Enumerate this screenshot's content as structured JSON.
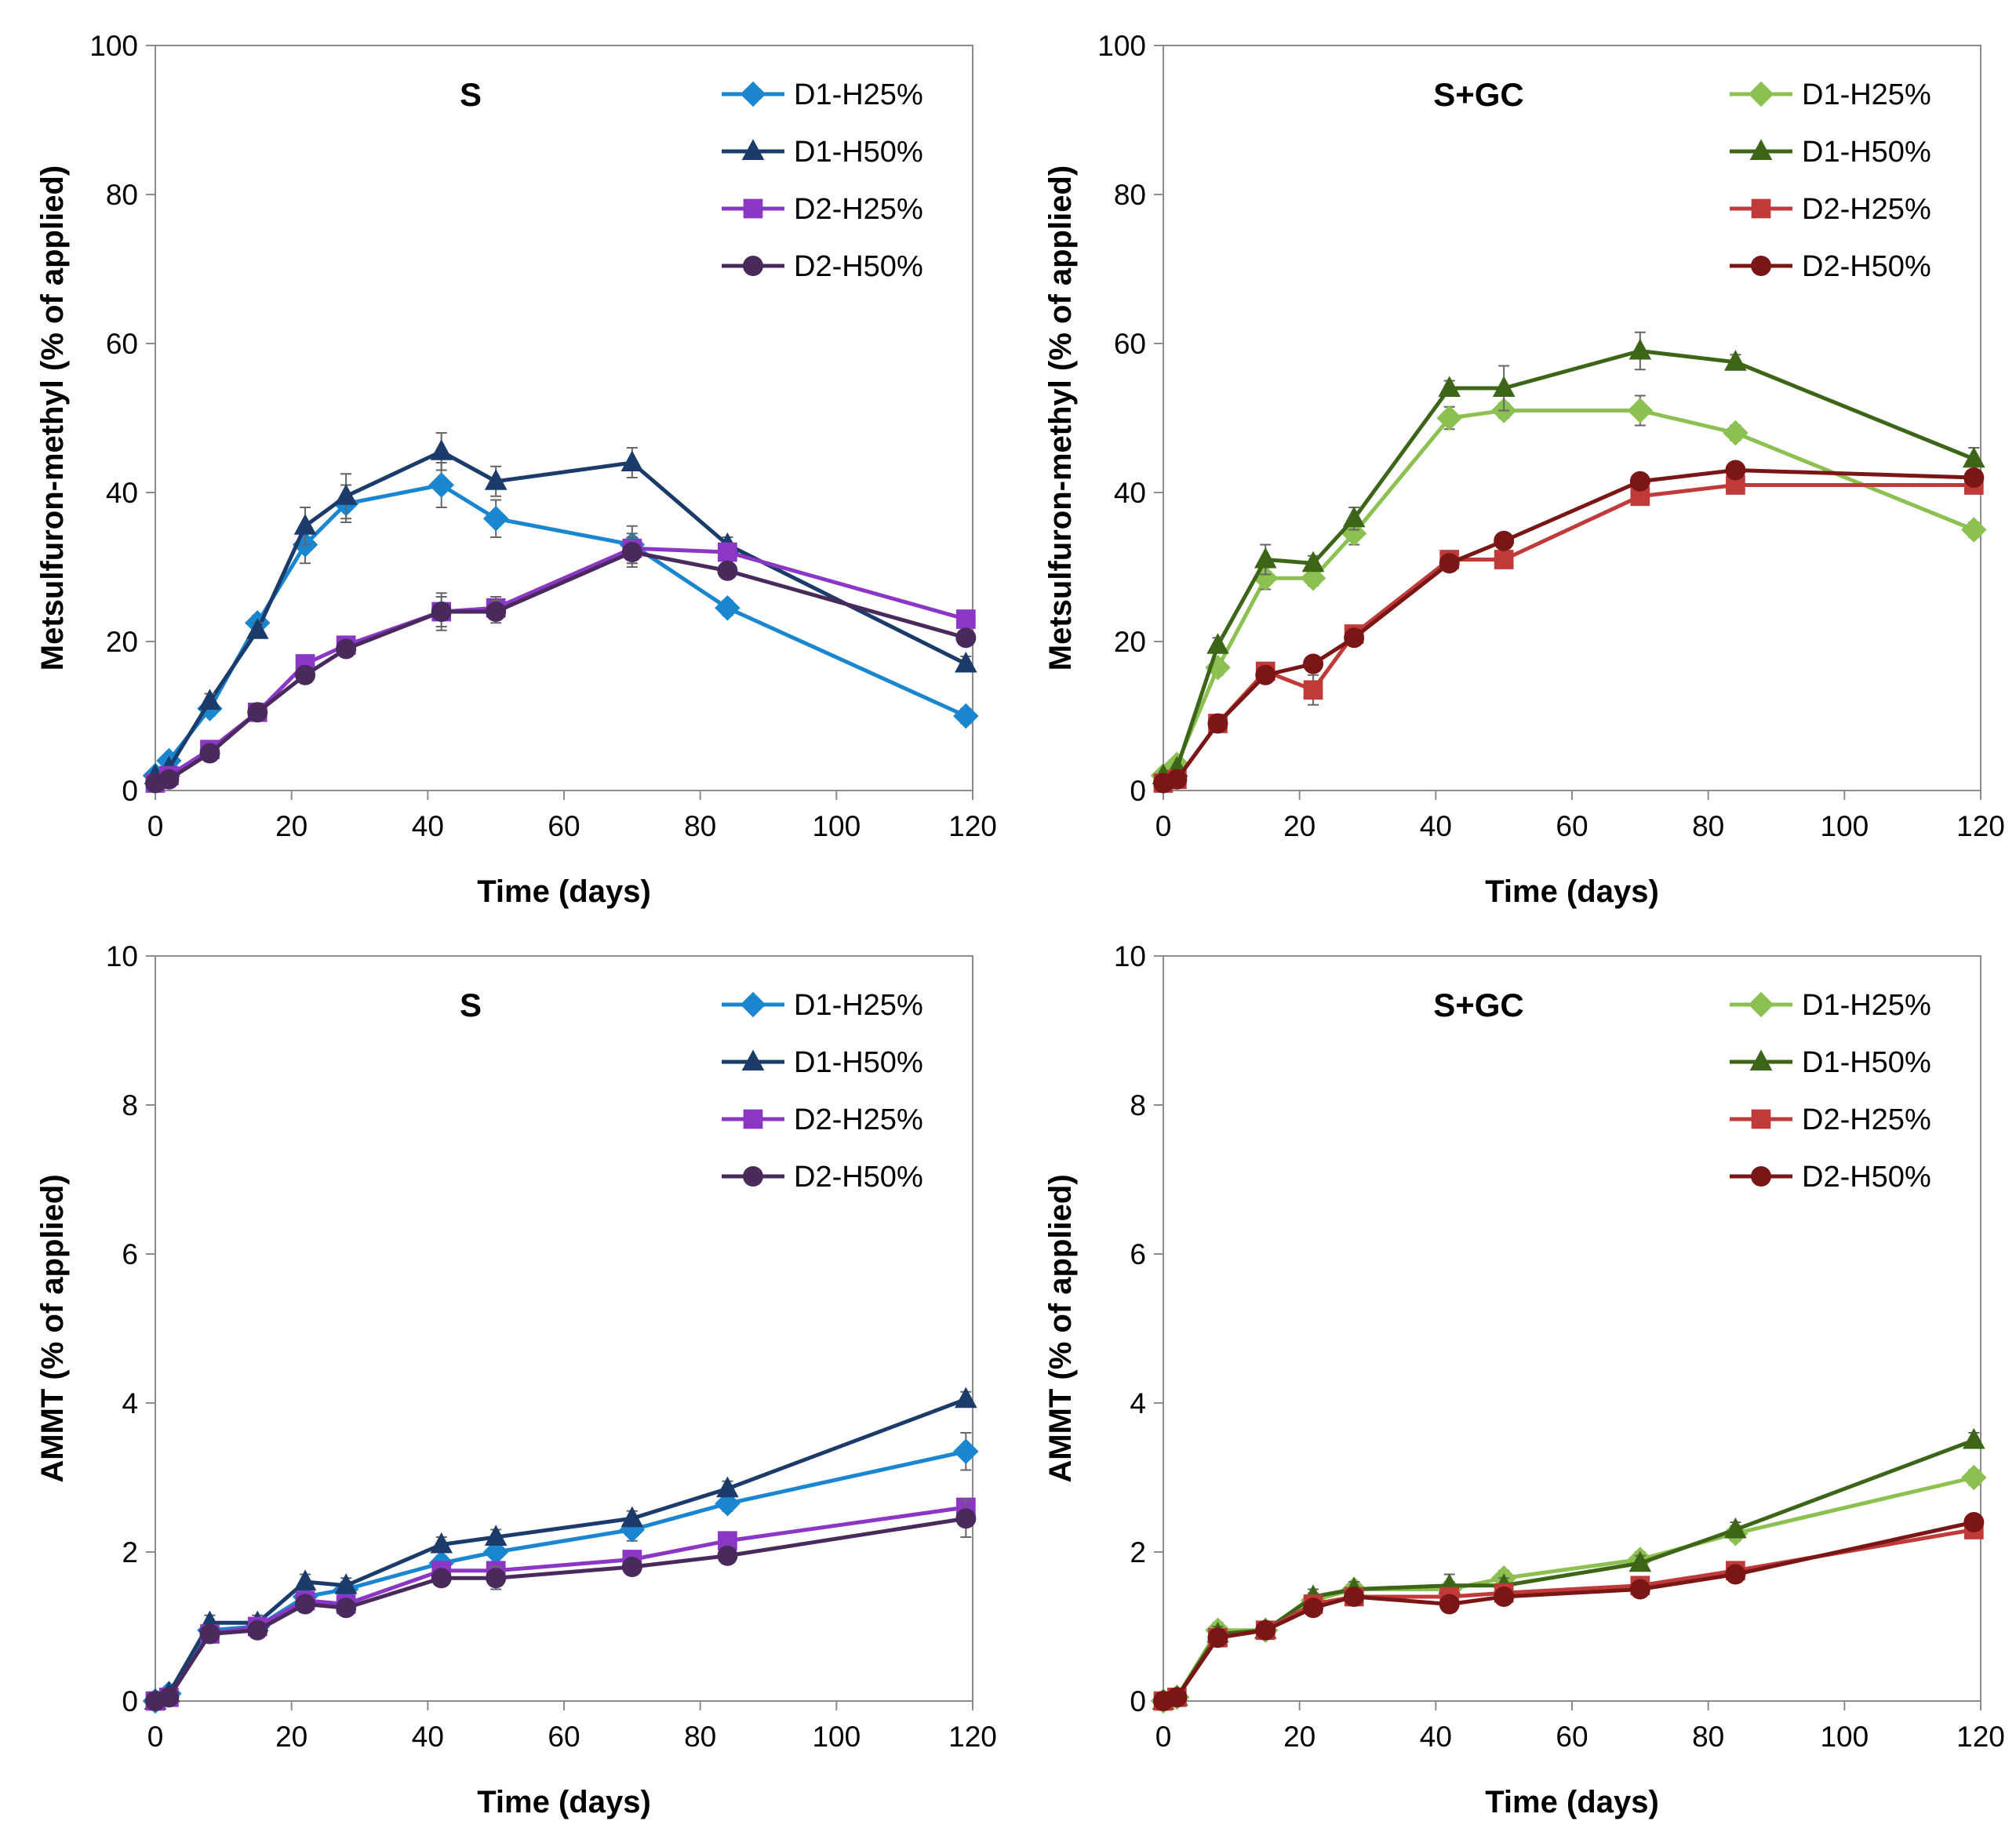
{
  "chart_data": [
    {
      "type": "line",
      "panel": "top-left",
      "title": "S",
      "xlabel": "Time (days)",
      "ylabel": "Metsulfuron-methyl (% of applied)",
      "xlim": [
        0,
        120
      ],
      "ylim": [
        0,
        100
      ],
      "xticks": [
        "0",
        "20",
        "40",
        "60",
        "80",
        "100",
        "120"
      ],
      "yticks": [
        "0",
        "20",
        "40",
        "60",
        "80",
        "100"
      ],
      "legend_position": "top-right",
      "series": [
        {
          "name": "D1-H25%",
          "color": "#1a86d0",
          "marker": "diamond",
          "x": [
            0,
            2,
            8,
            15,
            22,
            28,
            42,
            50,
            70,
            84,
            119
          ],
          "y": [
            2,
            4,
            11,
            22.5,
            33,
            38.5,
            41,
            36.5,
            33,
            24.5,
            10
          ],
          "err": [
            0,
            0,
            1,
            1,
            2.5,
            2.5,
            3,
            2.5,
            2.5,
            1,
            1
          ]
        },
        {
          "name": "D1-H50%",
          "color": "#1b3c6a",
          "marker": "triangle",
          "x": [
            0,
            2,
            8,
            15,
            22,
            28,
            42,
            50,
            70,
            84,
            119
          ],
          "y": [
            2,
            3,
            12,
            21.5,
            35.5,
            39.5,
            45.5,
            41.5,
            44,
            33,
            17
          ],
          "err": [
            0,
            0,
            1,
            1,
            2.5,
            3,
            2.5,
            2,
            2,
            1,
            1
          ]
        },
        {
          "name": "D2-H25%",
          "color": "#8b36c4",
          "marker": "square",
          "x": [
            0,
            2,
            8,
            15,
            22,
            28,
            42,
            50,
            70,
            84,
            119
          ],
          "y": [
            1,
            2,
            5.5,
            10.5,
            17,
            19.5,
            24,
            24.5,
            32.5,
            32,
            23
          ],
          "err": [
            0,
            0,
            1,
            1,
            1,
            1,
            2.5,
            1.5,
            2,
            1,
            1
          ]
        },
        {
          "name": "D2-H50%",
          "color": "#4a2a5c",
          "marker": "circle",
          "x": [
            0,
            2,
            8,
            15,
            22,
            28,
            42,
            50,
            70,
            84,
            119
          ],
          "y": [
            1,
            1.5,
            5,
            10.5,
            15.5,
            19,
            24,
            24,
            32,
            29.5,
            20.5
          ],
          "err": [
            0,
            0,
            1,
            1,
            1,
            1,
            2,
            1.5,
            2,
            1,
            1
          ]
        }
      ]
    },
    {
      "type": "line",
      "panel": "top-right",
      "title": "S+GC",
      "xlabel": "Time (days)",
      "ylabel": "Metsulfuron-methyl (% of applied)",
      "xlim": [
        0,
        120
      ],
      "ylim": [
        0,
        100
      ],
      "xticks": [
        "0",
        "20",
        "40",
        "60",
        "80",
        "100",
        "120"
      ],
      "yticks": [
        "0",
        "20",
        "40",
        "60",
        "80",
        "100"
      ],
      "legend_position": "top-right",
      "series": [
        {
          "name": "D1-H25%",
          "color": "#8cc152",
          "marker": "diamond",
          "x": [
            0,
            2,
            8,
            15,
            22,
            28,
            42,
            50,
            70,
            84,
            119
          ],
          "y": [
            2,
            3.5,
            16.5,
            28.5,
            28.5,
            34.5,
            50,
            51,
            51,
            48,
            35
          ],
          "err": [
            0,
            0,
            1,
            1.5,
            1,
            1.5,
            1.5,
            1,
            2,
            1,
            1
          ]
        },
        {
          "name": "D1-H50%",
          "color": "#3c6518",
          "marker": "triangle",
          "x": [
            0,
            2,
            8,
            15,
            22,
            28,
            42,
            50,
            70,
            84,
            119
          ],
          "y": [
            2,
            3,
            19.5,
            31,
            30.5,
            36.5,
            54,
            54,
            59,
            57.5,
            44.5
          ],
          "err": [
            0,
            0,
            1,
            2,
            1,
            1.5,
            1,
            3,
            2.5,
            1,
            1.5
          ]
        },
        {
          "name": "D2-H25%",
          "color": "#c03a3a",
          "marker": "square",
          "x": [
            0,
            2,
            8,
            15,
            22,
            28,
            42,
            50,
            70,
            84,
            119
          ],
          "y": [
            1,
            1.5,
            9,
            16,
            13.5,
            21,
            31,
            31,
            39.5,
            41,
            41
          ],
          "err": [
            0,
            0,
            1,
            1,
            2,
            1,
            1,
            1,
            1,
            1,
            1
          ]
        },
        {
          "name": "D2-H50%",
          "color": "#7a1616",
          "marker": "circle",
          "x": [
            0,
            2,
            8,
            15,
            22,
            28,
            42,
            50,
            70,
            84,
            119
          ],
          "y": [
            1,
            1.5,
            9,
            15.5,
            17,
            20.5,
            30.5,
            33.5,
            41.5,
            43,
            42
          ],
          "err": [
            0,
            0,
            1,
            1,
            1,
            1,
            1,
            1,
            1,
            1,
            1
          ]
        }
      ]
    },
    {
      "type": "line",
      "panel": "bottom-left",
      "title": "S",
      "xlabel": "Time (days)",
      "ylabel": "AMMT (% of applied)",
      "xlim": [
        0,
        120
      ],
      "ylim": [
        0,
        10
      ],
      "xticks": [
        "0",
        "20",
        "40",
        "60",
        "80",
        "100",
        "120"
      ],
      "yticks": [
        "0",
        "2",
        "4",
        "6",
        "8",
        "10"
      ],
      "legend_position": "top-right",
      "series": [
        {
          "name": "D1-H25%",
          "color": "#1a86d0",
          "marker": "diamond",
          "x": [
            0,
            2,
            8,
            15,
            22,
            28,
            42,
            50,
            70,
            84,
            119
          ],
          "y": [
            0,
            0.1,
            0.95,
            1.0,
            1.4,
            1.5,
            1.85,
            2.0,
            2.3,
            2.65,
            3.35
          ],
          "err": [
            0,
            0,
            0.1,
            0.1,
            0.1,
            0.1,
            0.1,
            0.15,
            0.15,
            0.1,
            0.25
          ]
        },
        {
          "name": "D1-H50%",
          "color": "#1b3c6a",
          "marker": "triangle",
          "x": [
            0,
            2,
            8,
            15,
            22,
            28,
            42,
            50,
            70,
            84,
            119
          ],
          "y": [
            0,
            0.1,
            1.05,
            1.05,
            1.6,
            1.55,
            2.1,
            2.2,
            2.45,
            2.85,
            4.05
          ],
          "err": [
            0,
            0,
            0.1,
            0.1,
            0.1,
            0.1,
            0.1,
            0.1,
            0.1,
            0.1,
            0.1
          ]
        },
        {
          "name": "D2-H25%",
          "color": "#8b36c4",
          "marker": "square",
          "x": [
            0,
            2,
            8,
            15,
            22,
            28,
            42,
            50,
            70,
            84,
            119
          ],
          "y": [
            0,
            0.05,
            0.9,
            1.0,
            1.35,
            1.3,
            1.75,
            1.75,
            1.9,
            2.15,
            2.6
          ],
          "err": [
            0,
            0,
            0.1,
            0.1,
            0.1,
            0.1,
            0.1,
            0.1,
            0.1,
            0.1,
            0.1
          ]
        },
        {
          "name": "D2-H50%",
          "color": "#4a2a5c",
          "marker": "circle",
          "x": [
            0,
            2,
            8,
            15,
            22,
            28,
            42,
            50,
            70,
            84,
            119
          ],
          "y": [
            0,
            0.05,
            0.9,
            0.95,
            1.3,
            1.25,
            1.65,
            1.65,
            1.8,
            1.95,
            2.45
          ],
          "err": [
            0,
            0,
            0.1,
            0.1,
            0.1,
            0.1,
            0.1,
            0.15,
            0.1,
            0.1,
            0.25
          ]
        }
      ]
    },
    {
      "type": "line",
      "panel": "bottom-right",
      "title": "S+GC",
      "xlabel": "Time (days)",
      "ylabel": "AMMT (% of applied)",
      "xlim": [
        0,
        120
      ],
      "ylim": [
        0,
        10
      ],
      "xticks": [
        "0",
        "20",
        "40",
        "60",
        "80",
        "100",
        "120"
      ],
      "yticks": [
        "0",
        "2",
        "4",
        "6",
        "8",
        "10"
      ],
      "legend_position": "top-right",
      "series": [
        {
          "name": "D1-H25%",
          "color": "#8cc152",
          "marker": "diamond",
          "x": [
            0,
            2,
            8,
            15,
            22,
            28,
            42,
            50,
            70,
            84,
            119
          ],
          "y": [
            0,
            0.05,
            0.95,
            0.95,
            1.35,
            1.5,
            1.5,
            1.65,
            1.9,
            2.25,
            3.0
          ],
          "err": [
            0,
            0,
            0.1,
            0.1,
            0.1,
            0.1,
            0.1,
            0.1,
            0.1,
            0.1,
            0.1
          ]
        },
        {
          "name": "D1-H50%",
          "color": "#3c6518",
          "marker": "triangle",
          "x": [
            0,
            2,
            8,
            15,
            22,
            28,
            42,
            50,
            70,
            84,
            119
          ],
          "y": [
            0,
            0.05,
            0.9,
            0.95,
            1.4,
            1.5,
            1.55,
            1.55,
            1.85,
            2.3,
            3.5
          ],
          "err": [
            0,
            0,
            0.1,
            0.1,
            0.1,
            0.1,
            0.15,
            0.1,
            0.1,
            0.1,
            0.1
          ]
        },
        {
          "name": "D2-H25%",
          "color": "#c03a3a",
          "marker": "square",
          "x": [
            0,
            2,
            8,
            15,
            22,
            28,
            42,
            50,
            70,
            84,
            119
          ],
          "y": [
            0,
            0.05,
            0.85,
            0.95,
            1.3,
            1.4,
            1.4,
            1.45,
            1.55,
            1.75,
            2.3
          ],
          "err": [
            0,
            0,
            0.1,
            0.1,
            0.1,
            0.1,
            0.1,
            0.1,
            0.1,
            0.1,
            0.1
          ]
        },
        {
          "name": "D2-H50%",
          "color": "#7a1616",
          "marker": "circle",
          "x": [
            0,
            2,
            8,
            15,
            22,
            28,
            42,
            50,
            70,
            84,
            119
          ],
          "y": [
            0,
            0.05,
            0.85,
            0.95,
            1.25,
            1.4,
            1.3,
            1.4,
            1.5,
            1.7,
            2.4
          ],
          "err": [
            0,
            0,
            0.1,
            0.1,
            0.1,
            0.1,
            0.1,
            0.1,
            0.1,
            0.1,
            0.1
          ]
        }
      ]
    }
  ]
}
